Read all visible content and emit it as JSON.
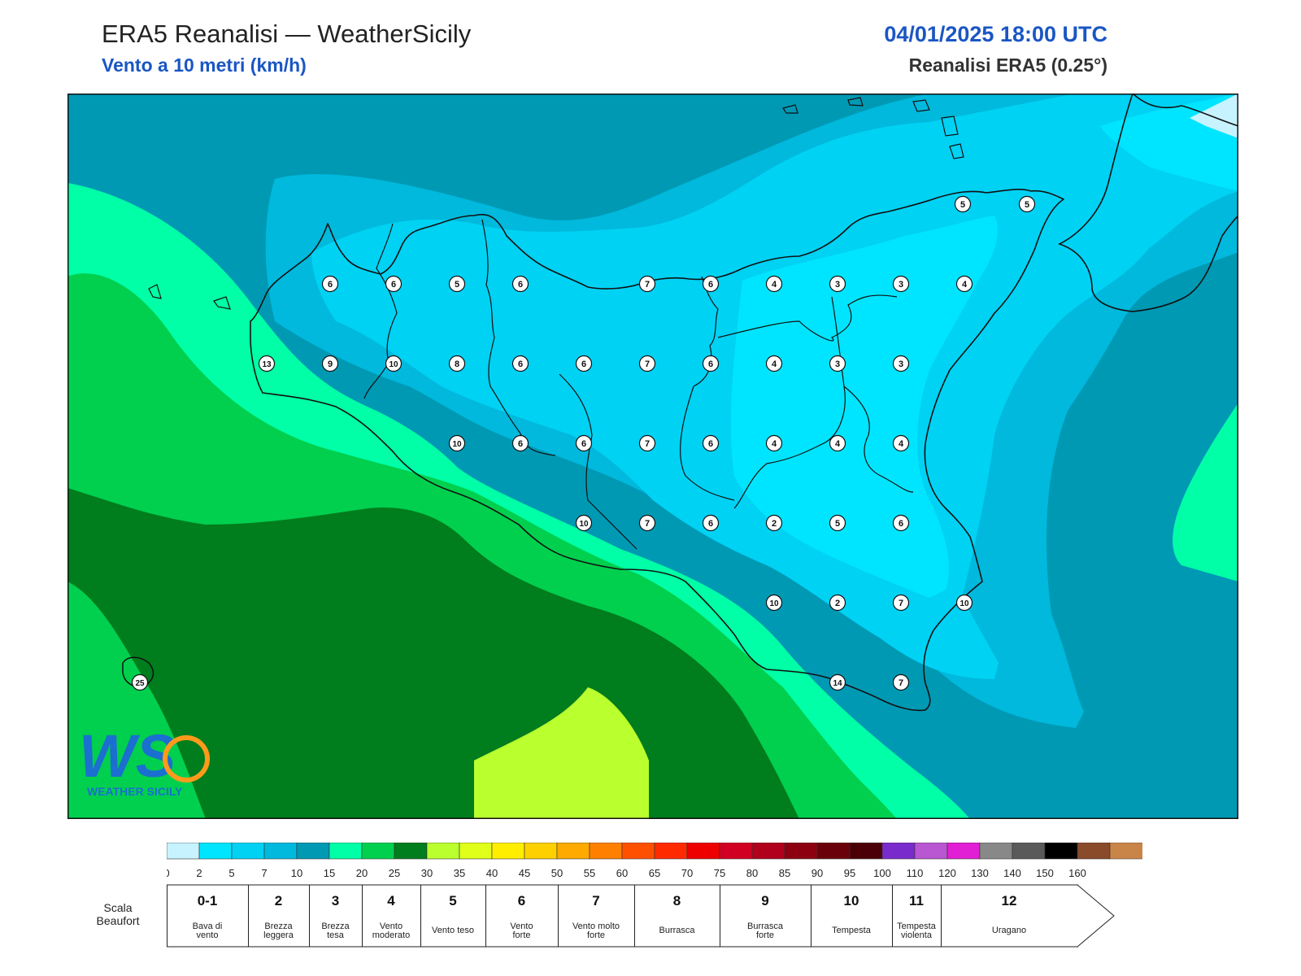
{
  "header": {
    "title": "ERA5 Reanalisi — WeatherSicily",
    "subtitle": "Vento a 10 metri (km/h)",
    "datetime": "04/01/2025 18:00 UTC",
    "source": "Reanalisi ERA5 (0.25°)"
  },
  "logo": {
    "text": "WEATHER SICILY",
    "letters": "WS"
  },
  "station_values": [
    {
      "name": "north-1",
      "value": 5
    },
    {
      "name": "north-2",
      "value": 5
    },
    {
      "name": "r1-1",
      "value": 6
    },
    {
      "name": "r1-2",
      "value": 6
    },
    {
      "name": "r1-3",
      "value": 5
    },
    {
      "name": "r1-4",
      "value": 6
    },
    {
      "name": "r1-5",
      "value": 7
    },
    {
      "name": "r1-6",
      "value": 6
    },
    {
      "name": "r1-7",
      "value": 4
    },
    {
      "name": "r1-8",
      "value": 3
    },
    {
      "name": "r1-9",
      "value": 3
    },
    {
      "name": "r1-10",
      "value": 4
    },
    {
      "name": "r2-1",
      "value": 13
    },
    {
      "name": "r2-2",
      "value": 9
    },
    {
      "name": "r2-3",
      "value": 10
    },
    {
      "name": "r2-4",
      "value": 8
    },
    {
      "name": "r2-5",
      "value": 6
    },
    {
      "name": "r2-6",
      "value": 6
    },
    {
      "name": "r2-7",
      "value": 7
    },
    {
      "name": "r2-8",
      "value": 6
    },
    {
      "name": "r2-9",
      "value": 4
    },
    {
      "name": "r2-10",
      "value": 3
    },
    {
      "name": "r2-11",
      "value": 3
    },
    {
      "name": "r3-1",
      "value": 10
    },
    {
      "name": "r3-2",
      "value": 6
    },
    {
      "name": "r3-3",
      "value": 6
    },
    {
      "name": "r3-4",
      "value": 7
    },
    {
      "name": "r3-5",
      "value": 6
    },
    {
      "name": "r3-6",
      "value": 4
    },
    {
      "name": "r3-7",
      "value": 4
    },
    {
      "name": "r3-8",
      "value": 4
    },
    {
      "name": "r4-1",
      "value": 10
    },
    {
      "name": "r4-2",
      "value": 7
    },
    {
      "name": "r4-3",
      "value": 6
    },
    {
      "name": "r4-4",
      "value": 2
    },
    {
      "name": "r4-5",
      "value": 5
    },
    {
      "name": "r4-6",
      "value": 6
    },
    {
      "name": "r5-1",
      "value": 10
    },
    {
      "name": "r5-2",
      "value": 2
    },
    {
      "name": "r5-3",
      "value": 7
    },
    {
      "name": "r5-4",
      "value": 10
    },
    {
      "name": "r6-1",
      "value": 14
    },
    {
      "name": "r6-2",
      "value": 7
    },
    {
      "name": "pantelleria",
      "value": 25
    }
  ],
  "colorbar": {
    "ticks": [
      "0",
      "2",
      "5",
      "7",
      "10",
      "15",
      "20",
      "25",
      "30",
      "35",
      "40",
      "45",
      "50",
      "55",
      "60",
      "65",
      "70",
      "75",
      "80",
      "85",
      "90",
      "95",
      "100",
      "110",
      "120",
      "130",
      "140",
      "150",
      "160"
    ],
    "colors": [
      "#c6f3ff",
      "#00e5ff",
      "#00d2f4",
      "#00b9dd",
      "#0099b4",
      "#00ffa6",
      "#00d04e",
      "#007d1d",
      "#baff2e",
      "#e0ff19",
      "#ffee00",
      "#ffd000",
      "#ffaa00",
      "#ff8000",
      "#ff5000",
      "#ff2a00",
      "#ee0000",
      "#d10022",
      "#b0001b",
      "#8c0010",
      "#6a000a",
      "#4b0008",
      "#7a2bcc",
      "#b956d2",
      "#e11fd4",
      "#888888",
      "#5a5a5a",
      "#000000",
      "#8a4b2b",
      "#c98447"
    ]
  },
  "beaufort": {
    "label": "Scala\nBeaufort",
    "levels": [
      {
        "num": "0-1",
        "desc": "Bava di\nvento"
      },
      {
        "num": "2",
        "desc": "Brezza\nleggera"
      },
      {
        "num": "3",
        "desc": "Brezza\ntesa"
      },
      {
        "num": "4",
        "desc": "Vento\nmoderato"
      },
      {
        "num": "5",
        "desc": "Vento teso"
      },
      {
        "num": "6",
        "desc": "Vento\nforte"
      },
      {
        "num": "7",
        "desc": "Vento molto\nforte"
      },
      {
        "num": "8",
        "desc": "Burrasca"
      },
      {
        "num": "9",
        "desc": "Burrasca\nforte"
      },
      {
        "num": "10",
        "desc": "Tempesta"
      },
      {
        "num": "11",
        "desc": "Tempesta\nviolenta"
      },
      {
        "num": "12",
        "desc": "Uragano"
      }
    ]
  }
}
